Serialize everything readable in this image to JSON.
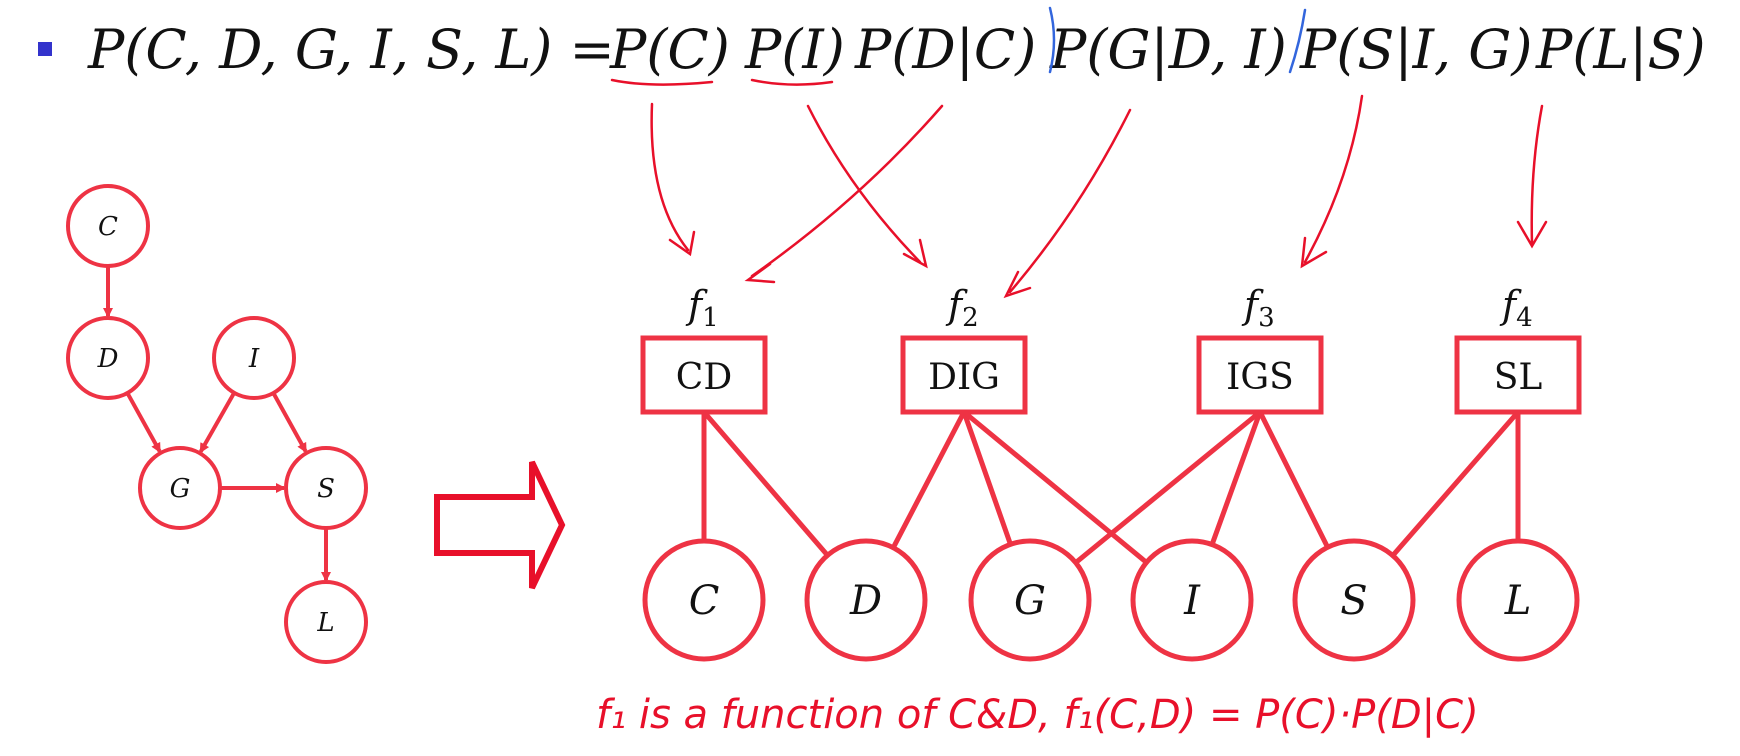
{
  "equation": {
    "bullet_color": "#3333cc",
    "lhs": "P(C, D, G, I, S, L) =",
    "factors": [
      "P(C)",
      "P(I)",
      "P(D|C)",
      "P(G|D, I)",
      "P(S|I, G)",
      "P(L|S)"
    ]
  },
  "bayes_net": {
    "nodes": [
      "C",
      "D",
      "I",
      "G",
      "S",
      "L"
    ],
    "edges": [
      [
        "C",
        "D"
      ],
      [
        "D",
        "G"
      ],
      [
        "I",
        "G"
      ],
      [
        "I",
        "S"
      ],
      [
        "G",
        "S"
      ],
      [
        "S",
        "L"
      ]
    ]
  },
  "factor_graph": {
    "factors": [
      {
        "name": "f1",
        "label": "f",
        "sub": "1",
        "scope": "CD"
      },
      {
        "name": "f2",
        "label": "f",
        "sub": "2",
        "scope": "DIG"
      },
      {
        "name": "f3",
        "label": "f",
        "sub": "3",
        "scope": "IGS"
      },
      {
        "name": "f4",
        "label": "f",
        "sub": "4",
        "scope": "SL"
      }
    ],
    "variables": [
      "C",
      "D",
      "G",
      "I",
      "S",
      "L"
    ],
    "links": [
      [
        "CD",
        "C"
      ],
      [
        "CD",
        "D"
      ],
      [
        "DIG",
        "D"
      ],
      [
        "DIG",
        "G"
      ],
      [
        "DIG",
        "I"
      ],
      [
        "IGS",
        "G"
      ],
      [
        "IGS",
        "I"
      ],
      [
        "IGS",
        "S"
      ],
      [
        "SL",
        "S"
      ],
      [
        "SL",
        "L"
      ]
    ]
  },
  "annotation": "f₁ is a function of C&D, f₁(C,D) = P(C)·P(D|C)",
  "colors": {
    "diagram": "#ee3344",
    "ink": "#e8102a",
    "text": "#111111",
    "bullet": "#3333cc"
  }
}
